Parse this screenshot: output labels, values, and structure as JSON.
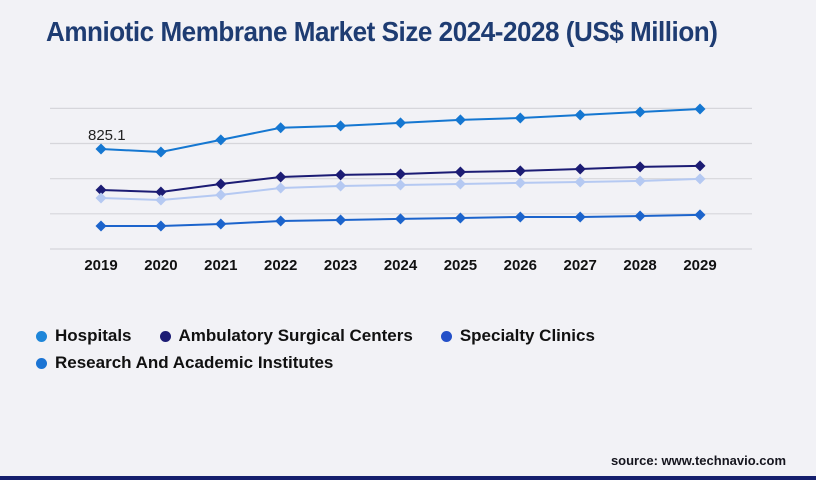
{
  "title": "Amniotic Membrane Market Size 2024-2028 (US$ Million)",
  "source": "source: www.technavio.com",
  "chart_data": {
    "type": "line",
    "x": [
      2019,
      2020,
      2021,
      2022,
      2023,
      2024,
      2025,
      2026,
      2027,
      2028,
      2029
    ],
    "series": [
      {
        "name": "Hospitals",
        "color": "#1577d1",
        "legend_color": "#1e86d9",
        "marker": "diamond",
        "values": [
          825.1,
          800,
          900,
          1000,
          1015,
          1040,
          1065,
          1080,
          1105,
          1130,
          1155
        ]
      },
      {
        "name": "Ambulatory Surgical Centers",
        "color": "#1c1c74",
        "legend_color": "#1c1c74",
        "marker": "diamond",
        "values": [
          487,
          470,
          536,
          594,
          611,
          619,
          635,
          644,
          660,
          677,
          685
        ]
      },
      {
        "name": "Specialty Clinics",
        "color": "#b5c9f2",
        "legend_color": "#2450c8",
        "marker": "diamond",
        "values": [
          421,
          404,
          446,
          503,
          520,
          528,
          536,
          545,
          553,
          561,
          578
        ]
      },
      {
        "name": "Research And Academic Institutes",
        "color": "#1c64cc",
        "legend_color": "#1b74d4",
        "marker": "diamond",
        "values": [
          190,
          190,
          206,
          231,
          239,
          248,
          256,
          264,
          264,
          272,
          281
        ]
      }
    ],
    "annotation": {
      "series": "Hospitals",
      "x": 2019,
      "label": "825.1"
    },
    "title": "Amniotic Membrane Market Size 2024-2028 (US$ Million)",
    "xlabel": "",
    "ylabel": "",
    "ylim": [
      0,
      1270
    ],
    "gridlines": [
      0,
      290,
      580,
      870,
      1160
    ],
    "grid": true,
    "legend_position": "bottom",
    "colors": {
      "background": "#f2f2f6",
      "gridline": "#d6d6db",
      "title_text": "#1e3c72",
      "axis_text": "#111111",
      "annotation_text": "#222222",
      "bottom_bar": "#151f6d"
    }
  }
}
